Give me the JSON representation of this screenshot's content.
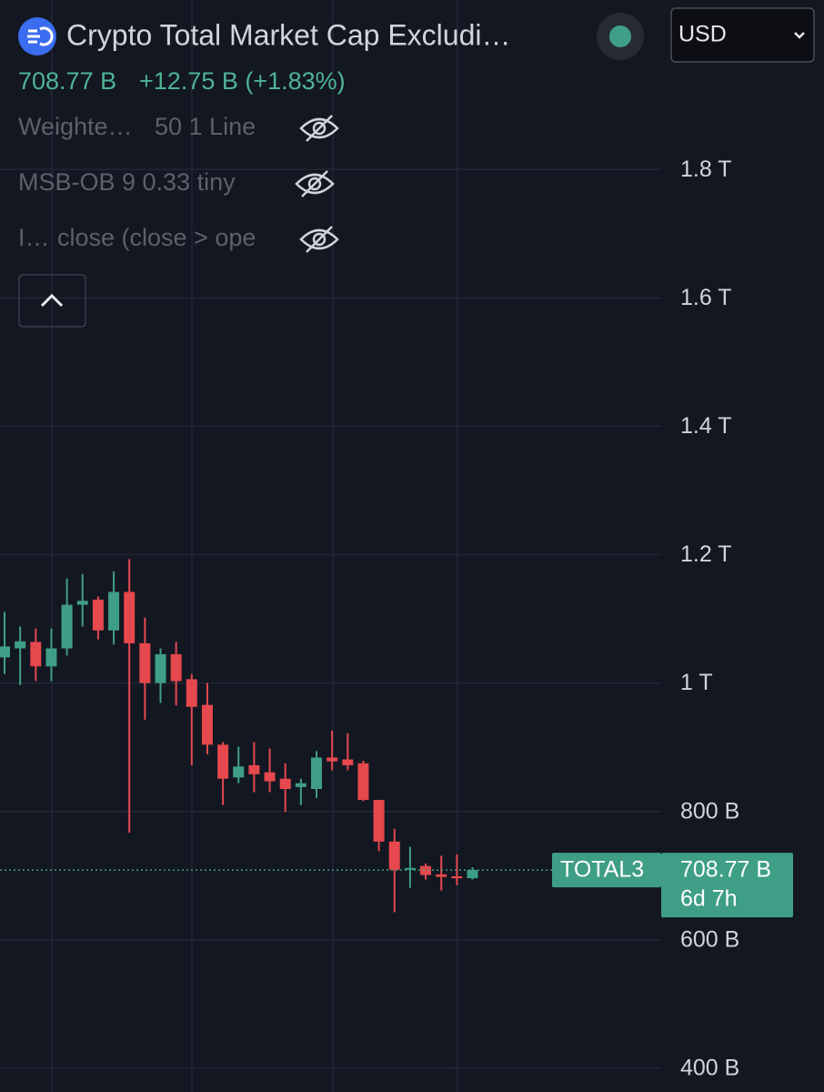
{
  "header": {
    "title": "Crypto Total Market Cap Excludi…",
    "price": "708.77 B",
    "change": "+12.75 B (+1.83%)",
    "currency": "USD"
  },
  "indicators": [
    {
      "name": "Weighte…",
      "params": "50 1 Line"
    },
    {
      "name": "MSB-OB 9 0.33 tiny",
      "params": ""
    },
    {
      "name": "I…",
      "params": "close (close > ope"
    }
  ],
  "chart_data": {
    "type": "candlestick",
    "open": [
      1040,
      1054,
      1064,
      1026,
      1054,
      1122,
      1130,
      1082,
      1142,
      1062,
      1000,
      1045,
      1006,
      966,
      904,
      853,
      872,
      861,
      851,
      838,
      835,
      884,
      881,
      875,
      818,
      753,
      709,
      715,
      702,
      699,
      696
    ],
    "high": [
      1111,
      1088,
      1085,
      1085,
      1163,
      1170,
      1135,
      1174,
      1193,
      1102,
      1054,
      1064,
      1014,
      1000,
      908,
      901,
      908,
      898,
      875,
      851,
      894,
      926,
      922,
      879,
      818,
      773,
      745,
      719,
      731,
      733,
      713
    ],
    "low": [
      1014,
      997,
      1003,
      1003,
      1043,
      1088,
      1068,
      1060,
      767,
      943,
      969,
      965,
      872,
      889,
      810,
      844,
      830,
      830,
      799,
      810,
      821,
      864,
      864,
      816,
      738,
      643,
      681,
      694,
      677,
      685,
      694
    ],
    "close": [
      1057,
      1065,
      1026,
      1054,
      1122,
      1128,
      1082,
      1142,
      1062,
      1000,
      1045,
      1003,
      963,
      904,
      851,
      870,
      858,
      847,
      835,
      844,
      884,
      878,
      872,
      818,
      753,
      709,
      712,
      701,
      698,
      696,
      708.77
    ],
    "up_color": "#3f9e86",
    "down_color": "#e5484d",
    "ylim": [
      363,
      2064
    ],
    "yticks": [
      {
        "value": 1800,
        "label": "1.8 T"
      },
      {
        "value": 1600,
        "label": "1.6 T"
      },
      {
        "value": 1400,
        "label": "1.4 T"
      },
      {
        "value": 1200,
        "label": "1.2 T"
      },
      {
        "value": 1000,
        "label": "1 T"
      },
      {
        "value": 800,
        "label": "800 B"
      },
      {
        "value": 600,
        "label": "600 B"
      },
      {
        "value": 400,
        "label": "400 B"
      }
    ],
    "grid": true,
    "price_line": {
      "value": 708.77,
      "label": "708.77 B",
      "symbol": "TOTAL3",
      "countdown": "6d 7h"
    }
  }
}
